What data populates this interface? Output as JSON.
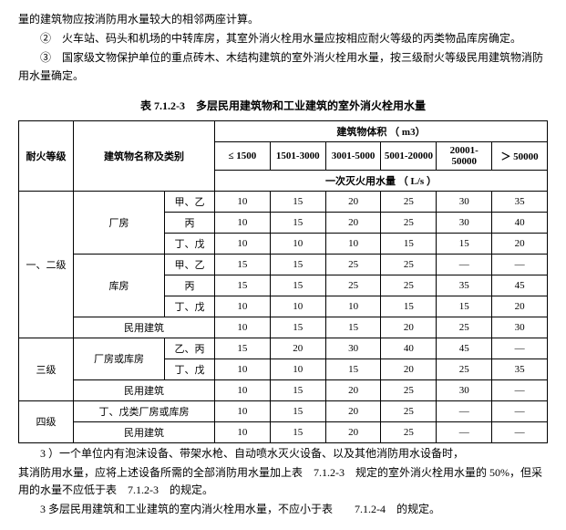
{
  "intro": {
    "p1": "量的建筑物应按消防用水量较大的相邻两座计算。",
    "p2": "②　火车站、码头和机场的中转库房，其室外消火栓用水量应按相应耐火等级的丙类物品库房确定。",
    "p3": "③　国家级文物保护单位的重点砖木、木结构建筑的室外消火栓用水量，按三级耐火等级民用建筑物消防用水量确定。"
  },
  "table": {
    "title": "表 7.1.2-3　多层民用建筑物和工业建筑的室外消火栓用水量",
    "hdr": {
      "fire_grade": "耐火等级",
      "name": "建筑物名称及类别",
      "volume": "建筑物体积 （ m3）",
      "flow": "一次灭火用水量 （ L/s ）",
      "cols": {
        "c1": "≤ 1500",
        "c2": "1501-3000",
        "c3": "3001-5000",
        "c4": "5001-20000",
        "c5": "20001-50000",
        "c6": "＞ 50000"
      }
    },
    "g1": {
      "label": "一、二级",
      "b1": {
        "name": "厂房",
        "r1": {
          "sub": "甲、乙",
          "v": [
            "10",
            "15",
            "20",
            "25",
            "30",
            "35"
          ]
        },
        "r2": {
          "sub": "丙",
          "v": [
            "10",
            "15",
            "20",
            "25",
            "30",
            "40"
          ]
        },
        "r3": {
          "sub": "丁、戊",
          "v": [
            "10",
            "10",
            "10",
            "15",
            "15",
            "20"
          ]
        }
      },
      "b2": {
        "name": "库房",
        "r1": {
          "sub": "甲、乙",
          "v": [
            "15",
            "15",
            "25",
            "25",
            "—",
            "—"
          ]
        },
        "r2": {
          "sub": "丙",
          "v": [
            "15",
            "15",
            "25",
            "25",
            "35",
            "45"
          ]
        },
        "r3": {
          "sub": "丁、戊",
          "v": [
            "10",
            "10",
            "10",
            "15",
            "15",
            "20"
          ]
        }
      },
      "b3": {
        "name": "民用建筑",
        "r1": {
          "sub": "",
          "v": [
            "10",
            "15",
            "15",
            "20",
            "25",
            "30"
          ]
        }
      }
    },
    "g2": {
      "label": "三级",
      "b1": {
        "name": "厂房或库房",
        "r1": {
          "sub": "乙、丙",
          "v": [
            "15",
            "20",
            "30",
            "40",
            "45",
            "—"
          ]
        },
        "r2": {
          "sub": "丁、戊",
          "v": [
            "10",
            "10",
            "15",
            "20",
            "25",
            "35"
          ]
        }
      },
      "b2": {
        "name": "民用建筑",
        "r1": {
          "sub": "",
          "v": [
            "10",
            "15",
            "20",
            "25",
            "30",
            "—"
          ]
        }
      }
    },
    "g3": {
      "label": "四级",
      "b1": {
        "name": "丁、戊类厂房或库房",
        "r1": {
          "sub": "",
          "v": [
            "10",
            "15",
            "20",
            "25",
            "—",
            "—"
          ]
        }
      },
      "b2": {
        "name": "民用建筑",
        "r1": {
          "sub": "",
          "v": [
            "10",
            "15",
            "20",
            "25",
            "—",
            "—"
          ]
        }
      }
    }
  },
  "notes": {
    "n1": "3 ）一个单位内有泡沫设备、带架水枪、自动喷水灭火设备、以及其他消防用水设备时，",
    "n2": "其消防用水量，应将上述设备所需的全部消防用水量加上表　7.1.2-3　规定的室外消火栓用水量的 50%，但采用的水量不应低于表　7.1.2-3　的规定。",
    "n3": "3  多层民用建筑和工业建筑的室内消火栓用水量，不应小于表　　7.1.2-4　的规定。"
  }
}
